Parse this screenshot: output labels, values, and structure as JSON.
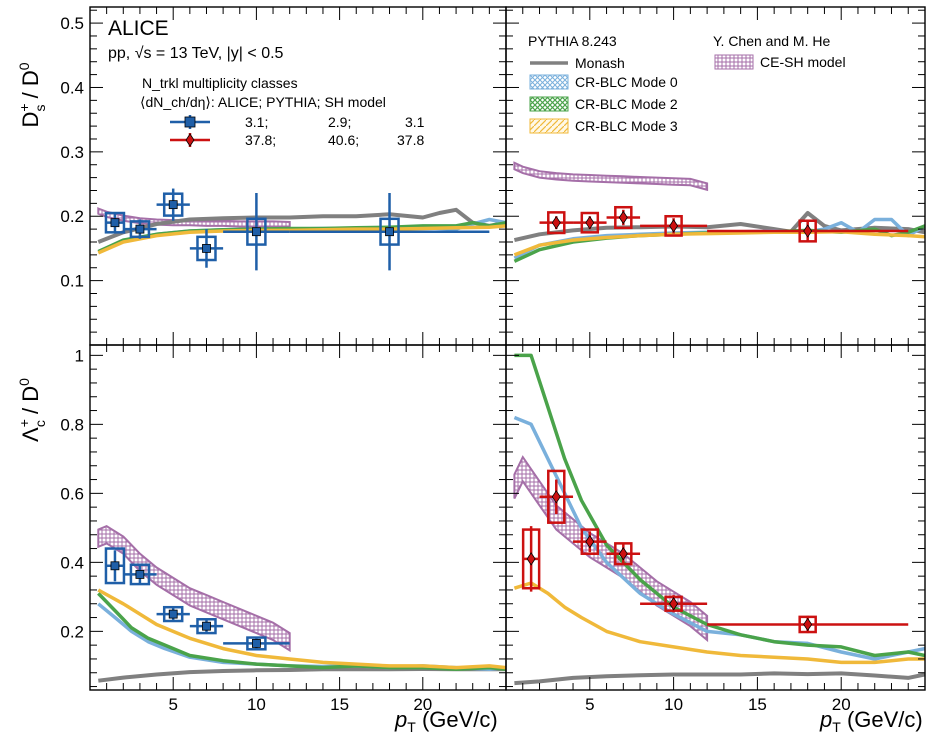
{
  "figure": {
    "experiment": "ALICE",
    "collision": "pp, √s = 13 TeV, |y| < 0.5",
    "x_label": "p_T (GeV/c)",
    "x_label_main": "p",
    "x_label_sub": "T",
    "x_label_unit": "(GeV/c)",
    "multiplicity_title": "N_trkl multiplicity classes",
    "multiplicity_header": "⟨dN_ch/dη⟩:   ALICE;   PYTHIA;  SH model",
    "legend_low": {
      "alice": "3.1;",
      "pythia": "2.9;",
      "sh": "3.1"
    },
    "legend_high": {
      "alice": "37.8;",
      "pythia": "40.6;",
      "sh": "37.8"
    },
    "pythia_title": "PYTHIA 8.243",
    "sh_title": "Y. Chen and M. He",
    "legend_monash": "Monash",
    "legend_mode0": "CR-BLC Mode 0",
    "legend_mode2": "CR-BLC Mode 2",
    "legend_mode3": "CR-BLC Mode 3",
    "legend_cesh": "CE-SH model"
  },
  "colors": {
    "low": "#1f5fa8",
    "high": "#cc1111",
    "monash": "#808080",
    "mode0": "#7ab0dc",
    "mode2": "#4aa34a",
    "mode3": "#f0b93a",
    "cesh": "#a56fa8"
  },
  "chart_data": [
    {
      "type": "line",
      "panel": "top-left",
      "ylabel": "D_s+ / D0",
      "xlim": [
        0,
        25
      ],
      "ylim": [
        0,
        0.525
      ],
      "yticks": [
        "0.1",
        "0.2",
        "0.3",
        "0.4",
        "0.5"
      ],
      "xticks": [
        "5",
        "10",
        "15",
        "20"
      ],
      "series": [
        {
          "name": "Monash",
          "x": [
            0.5,
            2,
            4,
            6,
            8,
            10,
            12,
            14,
            16,
            18,
            20,
            21,
            22,
            23,
            24,
            25
          ],
          "y": [
            0.16,
            0.175,
            0.188,
            0.195,
            0.197,
            0.198,
            0.198,
            0.2,
            0.2,
            0.203,
            0.198,
            0.205,
            0.21,
            0.19,
            0.185,
            0.19
          ]
        },
        {
          "name": "CR-BLC Mode 0",
          "x": [
            0.5,
            2,
            4,
            6,
            8,
            10,
            12,
            14,
            16,
            18,
            20,
            22,
            23,
            24,
            25
          ],
          "y": [
            0.145,
            0.162,
            0.172,
            0.177,
            0.179,
            0.18,
            0.18,
            0.181,
            0.181,
            0.182,
            0.182,
            0.18,
            0.188,
            0.195,
            0.19
          ]
        },
        {
          "name": "CR-BLC Mode 2",
          "x": [
            0.5,
            2,
            4,
            6,
            8,
            10,
            12,
            14,
            16,
            18,
            20,
            22,
            23,
            24,
            25
          ],
          "y": [
            0.145,
            0.163,
            0.172,
            0.177,
            0.179,
            0.18,
            0.181,
            0.181,
            0.182,
            0.183,
            0.185,
            0.185,
            0.19,
            0.185,
            0.19
          ]
        },
        {
          "name": "CR-BLC Mode 3",
          "x": [
            0.5,
            2,
            4,
            6,
            8,
            10,
            12,
            14,
            16,
            18,
            20,
            22,
            24,
            25
          ],
          "y": [
            0.143,
            0.16,
            0.17,
            0.175,
            0.177,
            0.178,
            0.178,
            0.179,
            0.18,
            0.18,
            0.181,
            0.182,
            0.183,
            0.185
          ]
        },
        {
          "name": "CE-SH model",
          "x": [
            0.5,
            1,
            2,
            3,
            4,
            5,
            6,
            7,
            8,
            9,
            10,
            11,
            12
          ],
          "y": [
            0.208,
            0.203,
            0.197,
            0.193,
            0.191,
            0.19,
            0.19,
            0.189,
            0.189,
            0.188,
            0.188,
            0.188,
            0.187
          ],
          "band": 0.004
        },
        {
          "name": "ALICE low",
          "x": [
            1.5,
            3,
            5,
            7,
            10,
            18
          ],
          "y": [
            0.19,
            0.18,
            0.218,
            0.15,
            0.176,
            0.176
          ],
          "xerr": [
            0.5,
            1,
            1,
            1,
            2,
            6
          ],
          "yerr": [
            0.015,
            0.015,
            0.025,
            0.03,
            0.06,
            0.06
          ],
          "syst": [
            0.015,
            0.012,
            0.017,
            0.018,
            0.02,
            0.02
          ]
        }
      ]
    },
    {
      "type": "line",
      "panel": "top-right",
      "xlim": [
        0,
        25
      ],
      "ylim": [
        0,
        0.525
      ],
      "xticks": [
        "5",
        "10",
        "15",
        "20"
      ],
      "series": [
        {
          "name": "Monash",
          "x": [
            0.5,
            2,
            4,
            6,
            8,
            10,
            12,
            14,
            16,
            17,
            18,
            19,
            20,
            22,
            24,
            25
          ],
          "y": [
            0.163,
            0.172,
            0.178,
            0.182,
            0.183,
            0.184,
            0.183,
            0.188,
            0.18,
            0.176,
            0.205,
            0.185,
            0.178,
            0.182,
            0.18,
            0.175
          ]
        },
        {
          "name": "CR-BLC Mode 0",
          "x": [
            0.5,
            2,
            4,
            6,
            8,
            10,
            12,
            14,
            16,
            18,
            19,
            20,
            21,
            22,
            23,
            24,
            25
          ],
          "y": [
            0.135,
            0.155,
            0.165,
            0.17,
            0.172,
            0.174,
            0.175,
            0.176,
            0.177,
            0.176,
            0.18,
            0.19,
            0.175,
            0.195,
            0.195,
            0.17,
            0.185
          ]
        },
        {
          "name": "CR-BLC Mode 2",
          "x": [
            0.5,
            2,
            4,
            6,
            8,
            10,
            12,
            14,
            16,
            18,
            20,
            22,
            23,
            24,
            25
          ],
          "y": [
            0.13,
            0.148,
            0.16,
            0.166,
            0.17,
            0.172,
            0.174,
            0.176,
            0.176,
            0.178,
            0.175,
            0.18,
            0.17,
            0.175,
            0.185
          ]
        },
        {
          "name": "CR-BLC Mode 3",
          "x": [
            0.5,
            2,
            4,
            6,
            8,
            10,
            12,
            14,
            16,
            18,
            20,
            22,
            24,
            25
          ],
          "y": [
            0.14,
            0.155,
            0.163,
            0.167,
            0.17,
            0.172,
            0.173,
            0.174,
            0.175,
            0.175,
            0.176,
            0.172,
            0.17,
            0.168
          ]
        },
        {
          "name": "CE-SH model",
          "x": [
            0.5,
            1,
            2,
            3,
            4,
            5,
            6,
            7,
            8,
            9,
            10,
            11,
            12
          ],
          "y": [
            0.278,
            0.272,
            0.265,
            0.262,
            0.26,
            0.259,
            0.258,
            0.257,
            0.256,
            0.255,
            0.254,
            0.253,
            0.246
          ],
          "band": 0.005
        },
        {
          "name": "ALICE high",
          "x": [
            3,
            5,
            7,
            10,
            18
          ],
          "y": [
            0.19,
            0.19,
            0.198,
            0.185,
            0.177
          ],
          "xerr": [
            1,
            1,
            1,
            2,
            6
          ],
          "yerr": [
            0.01,
            0.01,
            0.012,
            0.012,
            0.015
          ],
          "syst": [
            0.016,
            0.015,
            0.016,
            0.015,
            0.016
          ]
        }
      ]
    },
    {
      "type": "line",
      "panel": "bottom-left",
      "ylabel": "Λc+ / D0",
      "xlim": [
        0,
        25
      ],
      "ylim": [
        0.03,
        1.03
      ],
      "yticks": [
        "0.2",
        "0.4",
        "0.6",
        "0.8",
        "1"
      ],
      "xticks": [
        "5",
        "10",
        "15",
        "20"
      ],
      "series": [
        {
          "name": "Monash",
          "x": [
            0.5,
            2,
            4,
            6,
            8,
            10,
            12,
            14,
            16,
            18,
            20,
            22,
            24,
            25
          ],
          "y": [
            0.057,
            0.066,
            0.075,
            0.082,
            0.085,
            0.087,
            0.088,
            0.09,
            0.09,
            0.09,
            0.091,
            0.09,
            0.09,
            0.09
          ]
        },
        {
          "name": "CR-BLC Mode 0",
          "x": [
            0.5,
            1.5,
            2.5,
            3.5,
            4.5,
            6,
            8,
            10,
            12,
            14,
            16,
            18,
            20,
            22,
            24,
            25
          ],
          "y": [
            0.28,
            0.24,
            0.2,
            0.17,
            0.15,
            0.125,
            0.11,
            0.105,
            0.1,
            0.098,
            0.1,
            0.095,
            0.1,
            0.095,
            0.09,
            0.095
          ]
        },
        {
          "name": "CR-BLC Mode 2",
          "x": [
            0.5,
            1.5,
            2.5,
            3.5,
            4.5,
            6,
            8,
            10,
            12,
            14,
            16,
            18,
            20,
            22,
            24,
            25
          ],
          "y": [
            0.31,
            0.26,
            0.21,
            0.18,
            0.16,
            0.13,
            0.115,
            0.105,
            0.1,
            0.095,
            0.1,
            0.095,
            0.095,
            0.09,
            0.095,
            0.09
          ]
        },
        {
          "name": "CR-BLC Mode 3",
          "x": [
            0.5,
            2,
            4,
            6,
            8,
            10,
            12,
            14,
            16,
            18,
            20,
            22,
            24,
            25
          ],
          "y": [
            0.32,
            0.28,
            0.22,
            0.18,
            0.15,
            0.13,
            0.12,
            0.11,
            0.105,
            0.1,
            0.1,
            0.095,
            0.1,
            0.095
          ]
        },
        {
          "name": "CE-SH model",
          "x": [
            0.5,
            1,
            2,
            3,
            4,
            5,
            6,
            7,
            8,
            9,
            10,
            11,
            12
          ],
          "y": [
            0.47,
            0.48,
            0.45,
            0.4,
            0.36,
            0.33,
            0.3,
            0.28,
            0.26,
            0.24,
            0.22,
            0.2,
            0.17
          ],
          "band": 0.025
        },
        {
          "name": "ALICE low",
          "x": [
            1.5,
            3,
            5,
            7,
            10
          ],
          "y": [
            0.39,
            0.365,
            0.25,
            0.215,
            0.165
          ],
          "xerr": [
            0.5,
            1,
            1,
            1,
            2
          ],
          "yerr": [
            0.045,
            0.03,
            0.02,
            0.02,
            0.02
          ],
          "syst": [
            0.05,
            0.028,
            0.02,
            0.02,
            0.017
          ]
        }
      ]
    },
    {
      "type": "line",
      "panel": "bottom-right",
      "xlim": [
        0,
        25
      ],
      "ylim": [
        0.03,
        1.03
      ],
      "xticks": [
        "5",
        "10",
        "15",
        "20"
      ],
      "series": [
        {
          "name": "Monash",
          "x": [
            0.5,
            2,
            4,
            6,
            8,
            10,
            12,
            14,
            16,
            18,
            20,
            22,
            24,
            25
          ],
          "y": [
            0.05,
            0.055,
            0.065,
            0.07,
            0.073,
            0.075,
            0.075,
            0.075,
            0.078,
            0.076,
            0.078,
            0.072,
            0.065,
            0.075
          ]
        },
        {
          "name": "CR-BLC Mode 0",
          "x": [
            0.5,
            1.5,
            2.5,
            3.5,
            4.5,
            6,
            8,
            10,
            12,
            14,
            16,
            18,
            20,
            22,
            24,
            25
          ],
          "y": [
            0.82,
            0.8,
            0.7,
            0.6,
            0.5,
            0.4,
            0.31,
            0.25,
            0.2,
            0.19,
            0.17,
            0.165,
            0.14,
            0.12,
            0.14,
            0.15
          ]
        },
        {
          "name": "CR-BLC Mode 2",
          "x": [
            0.5,
            1.5,
            2.5,
            3.5,
            4.5,
            6,
            8,
            10,
            12,
            14,
            16,
            18,
            20,
            22,
            24,
            25
          ],
          "y": [
            1.0,
            1.0,
            0.85,
            0.7,
            0.58,
            0.45,
            0.35,
            0.27,
            0.22,
            0.19,
            0.17,
            0.16,
            0.155,
            0.13,
            0.14,
            0.13
          ]
        },
        {
          "name": "CR-BLC Mode 3",
          "x": [
            0.5,
            1.5,
            2.5,
            3.5,
            4.5,
            6,
            8,
            10,
            12,
            14,
            16,
            18,
            20,
            22,
            24,
            25
          ],
          "y": [
            0.325,
            0.34,
            0.31,
            0.27,
            0.24,
            0.2,
            0.17,
            0.155,
            0.14,
            0.13,
            0.125,
            0.12,
            0.11,
            0.11,
            0.12,
            0.12
          ]
        },
        {
          "name": "CE-SH model",
          "x": [
            0.5,
            1,
            2,
            3,
            4,
            5,
            6,
            7,
            8,
            9,
            10,
            11,
            12
          ],
          "y": [
            0.62,
            0.67,
            0.6,
            0.53,
            0.49,
            0.45,
            0.42,
            0.39,
            0.35,
            0.31,
            0.28,
            0.25,
            0.21
          ],
          "band": 0.035
        },
        {
          "name": "ALICE high",
          "x": [
            1.5,
            3,
            5,
            7,
            10,
            18
          ],
          "y": [
            0.41,
            0.59,
            0.46,
            0.425,
            0.28,
            0.22
          ],
          "xerr": [
            0.5,
            1,
            1,
            1,
            2,
            6
          ],
          "yerr": [
            0.095,
            0.05,
            0.03,
            0.03,
            0.025,
            0.025
          ],
          "syst": [
            0.085,
            0.075,
            0.035,
            0.03,
            0.02,
            0.022
          ]
        }
      ]
    }
  ]
}
